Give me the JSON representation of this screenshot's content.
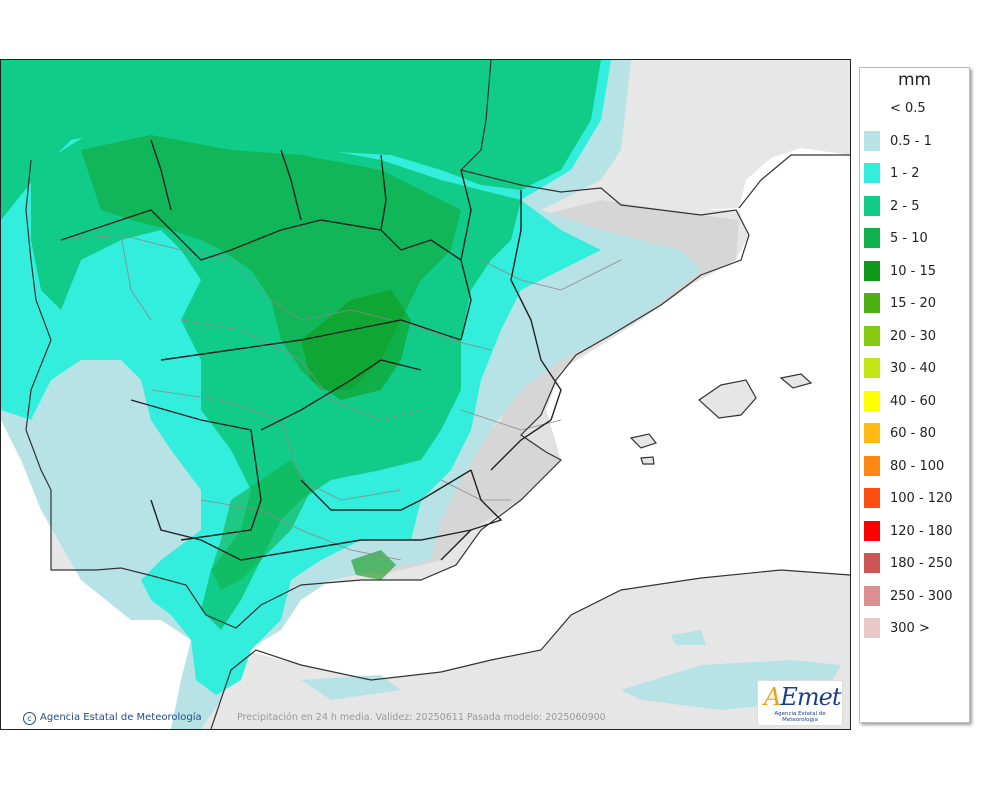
{
  "legend": {
    "unit": "mm",
    "items": [
      {
        "label": "< 0.5",
        "color": "#ffffff"
      },
      {
        "label": "0.5 - 1",
        "color": "#b7e2e6"
      },
      {
        "label": "1 - 2",
        "color": "#33eedd"
      },
      {
        "label": "2 - 5",
        "color": "#11cc88"
      },
      {
        "label": "5 - 10",
        "color": "#10b04c"
      },
      {
        "label": "10 - 15",
        "color": "#0f9918"
      },
      {
        "label": "15 - 20",
        "color": "#4caf14"
      },
      {
        "label": "20 - 30",
        "color": "#88cc11"
      },
      {
        "label": "30 - 40",
        "color": "#c4e616"
      },
      {
        "label": "40 - 60",
        "color": "#ffff00"
      },
      {
        "label": "60 - 80",
        "color": "#ffbb11"
      },
      {
        "label": "80 - 100",
        "color": "#ff8811"
      },
      {
        "label": "100 - 120",
        "color": "#ff4c11"
      },
      {
        "label": "120 - 180",
        "color": "#ff0000"
      },
      {
        "label": "180 - 250",
        "color": "#cc5555"
      },
      {
        "label": "250 - 300",
        "color": "#dd9090"
      },
      {
        "label": "300 >",
        "color": "#ebc8c8"
      }
    ]
  },
  "map": {
    "copyright": "Agencia Estatal de Meteorología",
    "footer_note": "Precipitación en 24 h media. Validez: 20250611 Pasada modelo: 2025060900",
    "logo_text": "AEmet",
    "logo_subtitle": "Agencia Estatal de Meteorología",
    "colors": {
      "sea": "#ffffff",
      "land_bg": "#e6e6e6",
      "relief": "#d4d4d4",
      "coast": "#333333",
      "region_border": "#222222",
      "province_border": "#8a8a8a"
    }
  }
}
